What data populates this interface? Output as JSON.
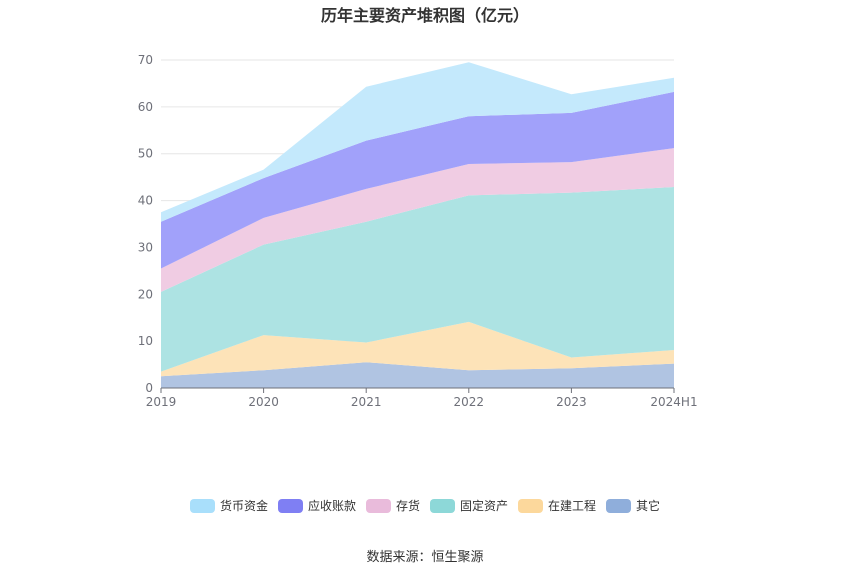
{
  "title": "历年主要资产堆积图（亿元）",
  "source": "数据来源：恒生聚源",
  "chart_data": {
    "type": "area",
    "stacked": true,
    "title": "历年主要资产堆积图（亿元）",
    "x": [
      "2019",
      "2020",
      "2021",
      "2022",
      "2023",
      "2024H1"
    ],
    "ylim": [
      0,
      70
    ],
    "yticks": [
      0,
      10,
      20,
      30,
      40,
      50,
      60,
      70
    ],
    "grid": "horizontal",
    "legend_position": "bottom",
    "series": [
      {
        "name": "其它",
        "color": "#b0c4e2",
        "legend_color": "#8faedb",
        "values": [
          2.5,
          3.8,
          5.5,
          3.8,
          4.2,
          5.2
        ]
      },
      {
        "name": "在建工程",
        "color": "#fde3b8",
        "legend_color": "#fcd89c",
        "values": [
          1.0,
          7.5,
          4.2,
          10.3,
          2.3,
          2.9
        ]
      },
      {
        "name": "固定资产",
        "color": "#ade3e3",
        "legend_color": "#8dd8d8",
        "values": [
          17.0,
          19.3,
          25.8,
          27.0,
          35.2,
          34.8
        ]
      },
      {
        "name": "存货",
        "color": "#f0cce3",
        "legend_color": "#e9bbdb",
        "values": [
          5.0,
          5.7,
          7.0,
          6.7,
          6.5,
          8.3
        ]
      },
      {
        "name": "应收账款",
        "color": "#a1a1fa",
        "legend_color": "#7f7ff3",
        "values": [
          10.0,
          8.5,
          10.3,
          10.2,
          10.5,
          12.0
        ]
      },
      {
        "name": "货币资金",
        "color": "#c4e9fc",
        "legend_color": "#a9dffb",
        "values": [
          2.0,
          1.8,
          11.5,
          11.5,
          4.0,
          3.0
        ]
      }
    ],
    "legend_order": [
      "货币资金",
      "应收账款",
      "存货",
      "固定资产",
      "在建工程",
      "其它"
    ]
  }
}
